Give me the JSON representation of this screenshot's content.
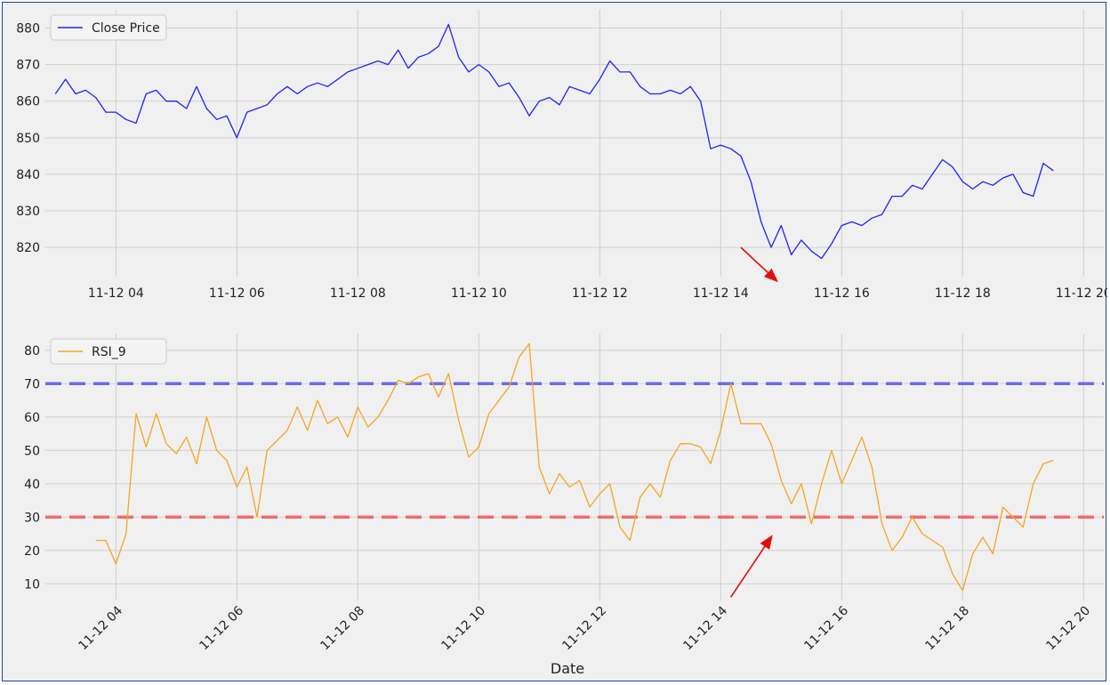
{
  "chart_data": [
    {
      "type": "line",
      "title": "",
      "xlabel": "",
      "ylabel": "",
      "xlim": [
        "2023-11-12 02:50",
        "2023-11-12 20:20"
      ],
      "ylim": [
        812,
        885
      ],
      "x_ticks": [
        "11-12 04",
        "11-12 06",
        "11-12 08",
        "11-12 10",
        "11-12 12",
        "11-12 14",
        "11-12 16",
        "11-12 18",
        "11-12 20"
      ],
      "y_ticks": [
        "820",
        "830",
        "840",
        "850",
        "860",
        "870",
        "880"
      ],
      "legend": {
        "position": "top-left"
      },
      "grid": true,
      "series": [
        {
          "name": "Close Price",
          "color": "#2222ee",
          "x": [
            "2023-11-12 03:00",
            "2023-11-12 03:10",
            "2023-11-12 03:20",
            "2023-11-12 03:30",
            "2023-11-12 03:40",
            "2023-11-12 03:50",
            "2023-11-12 04:00",
            "2023-11-12 04:10",
            "2023-11-12 04:20",
            "2023-11-12 04:30",
            "2023-11-12 04:40",
            "2023-11-12 04:50",
            "2023-11-12 05:00",
            "2023-11-12 05:10",
            "2023-11-12 05:20",
            "2023-11-12 05:30",
            "2023-11-12 05:40",
            "2023-11-12 05:50",
            "2023-11-12 06:00",
            "2023-11-12 06:10",
            "2023-11-12 06:20",
            "2023-11-12 06:30",
            "2023-11-12 06:40",
            "2023-11-12 06:50",
            "2023-11-12 07:00",
            "2023-11-12 07:10",
            "2023-11-12 07:20",
            "2023-11-12 07:30",
            "2023-11-12 07:40",
            "2023-11-12 07:50",
            "2023-11-12 08:00",
            "2023-11-12 08:10",
            "2023-11-12 08:20",
            "2023-11-12 08:30",
            "2023-11-12 08:40",
            "2023-11-12 08:50",
            "2023-11-12 09:00",
            "2023-11-12 09:10",
            "2023-11-12 09:20",
            "2023-11-12 09:30",
            "2023-11-12 09:40",
            "2023-11-12 09:50",
            "2023-11-12 10:00",
            "2023-11-12 10:10",
            "2023-11-12 10:20",
            "2023-11-12 10:30",
            "2023-11-12 10:40",
            "2023-11-12 10:50",
            "2023-11-12 11:00",
            "2023-11-12 11:10",
            "2023-11-12 11:20",
            "2023-11-12 11:30",
            "2023-11-12 11:40",
            "2023-11-12 11:50",
            "2023-11-12 12:00",
            "2023-11-12 12:10",
            "2023-11-12 12:20",
            "2023-11-12 12:30",
            "2023-11-12 12:40",
            "2023-11-12 12:50",
            "2023-11-12 13:00",
            "2023-11-12 13:10",
            "2023-11-12 13:20",
            "2023-11-12 13:30",
            "2023-11-12 13:40",
            "2023-11-12 13:50",
            "2023-11-12 14:00",
            "2023-11-12 14:10",
            "2023-11-12 14:20",
            "2023-11-12 14:30",
            "2023-11-12 14:40",
            "2023-11-12 14:50",
            "2023-11-12 15:00",
            "2023-11-12 15:10",
            "2023-11-12 15:20",
            "2023-11-12 15:30",
            "2023-11-12 15:40",
            "2023-11-12 15:50",
            "2023-11-12 16:00",
            "2023-11-12 16:10",
            "2023-11-12 16:20",
            "2023-11-12 16:30",
            "2023-11-12 16:40",
            "2023-11-12 16:50",
            "2023-11-12 17:00",
            "2023-11-12 17:10",
            "2023-11-12 17:20",
            "2023-11-12 17:30",
            "2023-11-12 17:40",
            "2023-11-12 17:50",
            "2023-11-12 18:00",
            "2023-11-12 18:10",
            "2023-11-12 18:20",
            "2023-11-12 18:30",
            "2023-11-12 18:40",
            "2023-11-12 18:50",
            "2023-11-12 19:00",
            "2023-11-12 19:10",
            "2023-11-12 19:20",
            "2023-11-12 19:30"
          ],
          "y": [
            862,
            866,
            862,
            863,
            861,
            857,
            857,
            855,
            854,
            862,
            863,
            860,
            860,
            858,
            864,
            858,
            855,
            856,
            850,
            857,
            858,
            859,
            862,
            864,
            862,
            864,
            865,
            864,
            866,
            868,
            869,
            870,
            871,
            870,
            874,
            869,
            872,
            873,
            875,
            881,
            872,
            868,
            870,
            868,
            864,
            865,
            861,
            856,
            860,
            861,
            859,
            864,
            863,
            862,
            866,
            871,
            868,
            868,
            864,
            862,
            862,
            863,
            862,
            864,
            860,
            847,
            848,
            847,
            845,
            838,
            827,
            820,
            826,
            818,
            822,
            819,
            817,
            821,
            826,
            827,
            826,
            828,
            829,
            834,
            834,
            837,
            836,
            840,
            844,
            842,
            838,
            836,
            838,
            837,
            839,
            840,
            835,
            834,
            843,
            841
          ],
          "approximate": true
        }
      ]
    },
    {
      "type": "line",
      "title": "",
      "xlabel": "Date",
      "ylabel": "",
      "xlim": [
        "2023-11-12 02:50",
        "2023-11-12 20:20"
      ],
      "ylim": [
        5,
        85
      ],
      "x_ticks": [
        "11-12 04",
        "11-12 06",
        "11-12 08",
        "11-12 10",
        "11-12 12",
        "11-12 14",
        "11-12 16",
        "11-12 18",
        "11-12 20"
      ],
      "y_ticks": [
        "10",
        "20",
        "30",
        "40",
        "50",
        "60",
        "70",
        "80"
      ],
      "legend": {
        "position": "top-left"
      },
      "grid": true,
      "series": [
        {
          "name": "RSI_9",
          "color": "#f5a623",
          "x": [
            "2023-11-12 03:40",
            "2023-11-12 03:50",
            "2023-11-12 04:00",
            "2023-11-12 04:10",
            "2023-11-12 04:20",
            "2023-11-12 04:30",
            "2023-11-12 04:40",
            "2023-11-12 04:50",
            "2023-11-12 05:00",
            "2023-11-12 05:10",
            "2023-11-12 05:20",
            "2023-11-12 05:30",
            "2023-11-12 05:40",
            "2023-11-12 05:50",
            "2023-11-12 06:00",
            "2023-11-12 06:10",
            "2023-11-12 06:20",
            "2023-11-12 06:30",
            "2023-11-12 06:40",
            "2023-11-12 06:50",
            "2023-11-12 07:00",
            "2023-11-12 07:10",
            "2023-11-12 07:20",
            "2023-11-12 07:30",
            "2023-11-12 07:40",
            "2023-11-12 07:50",
            "2023-11-12 08:00",
            "2023-11-12 08:10",
            "2023-11-12 08:20",
            "2023-11-12 08:30",
            "2023-11-12 08:40",
            "2023-11-12 08:50",
            "2023-11-12 09:00",
            "2023-11-12 09:10",
            "2023-11-12 09:20",
            "2023-11-12 09:30",
            "2023-11-12 09:40",
            "2023-11-12 09:50",
            "2023-11-12 10:00",
            "2023-11-12 10:10",
            "2023-11-12 10:20",
            "2023-11-12 10:30",
            "2023-11-12 10:40",
            "2023-11-12 10:50",
            "2023-11-12 11:00",
            "2023-11-12 11:10",
            "2023-11-12 11:20",
            "2023-11-12 11:30",
            "2023-11-12 11:40",
            "2023-11-12 11:50",
            "2023-11-12 12:00",
            "2023-11-12 12:10",
            "2023-11-12 12:20",
            "2023-11-12 12:30",
            "2023-11-12 12:40",
            "2023-11-12 12:50",
            "2023-11-12 13:00",
            "2023-11-12 13:10",
            "2023-11-12 13:20",
            "2023-11-12 13:30",
            "2023-11-12 13:40",
            "2023-11-12 13:50",
            "2023-11-12 14:00",
            "2023-11-12 14:10",
            "2023-11-12 14:20",
            "2023-11-12 14:30",
            "2023-11-12 14:40",
            "2023-11-12 14:50",
            "2023-11-12 15:00",
            "2023-11-12 15:10",
            "2023-11-12 15:20",
            "2023-11-12 15:30",
            "2023-11-12 15:40",
            "2023-11-12 15:50",
            "2023-11-12 16:00",
            "2023-11-12 16:10",
            "2023-11-12 16:20",
            "2023-11-12 16:30",
            "2023-11-12 16:40",
            "2023-11-12 16:50",
            "2023-11-12 17:00",
            "2023-11-12 17:10",
            "2023-11-12 17:20",
            "2023-11-12 17:30",
            "2023-11-12 17:40",
            "2023-11-12 17:50",
            "2023-11-12 18:00",
            "2023-11-12 18:10",
            "2023-11-12 18:20",
            "2023-11-12 18:30",
            "2023-11-12 18:40",
            "2023-11-12 18:50",
            "2023-11-12 19:00",
            "2023-11-12 19:10",
            "2023-11-12 19:20",
            "2023-11-12 19:30"
          ],
          "y": [
            23,
            23,
            16,
            25,
            61,
            51,
            61,
            52,
            49,
            54,
            46,
            60,
            50,
            47,
            39,
            45,
            30,
            50,
            53,
            56,
            63,
            56,
            65,
            58,
            60,
            54,
            63,
            57,
            60,
            65,
            71,
            70,
            72,
            73,
            66,
            73,
            59,
            48,
            51,
            61,
            65,
            69,
            78,
            82,
            45,
            37,
            43,
            39,
            41,
            33,
            37,
            40,
            27,
            23,
            36,
            40,
            36,
            47,
            52,
            52,
            51,
            46,
            56,
            70,
            58,
            58,
            58,
            52,
            41,
            34,
            40,
            28,
            40,
            50,
            40,
            47,
            54,
            45,
            28,
            20,
            24,
            30,
            25,
            23,
            21,
            13,
            8,
            19,
            24,
            19,
            33,
            30,
            27,
            40,
            46,
            47
          ],
          "approximate": true
        }
      ],
      "reference_lines": [
        {
          "y": 70,
          "color": "#6666ee",
          "style": "dashed"
        },
        {
          "y": 30,
          "color": "#ee6666",
          "style": "dashed"
        }
      ]
    }
  ],
  "annotations": {
    "arrow_color": "#e01010",
    "arrows": [
      {
        "panel": "price",
        "from": [
          "2023-11-12 14:20",
          820
        ],
        "to": [
          "2023-11-12 14:55",
          811
        ]
      },
      {
        "panel": "rsi",
        "from": [
          "2023-11-12 14:10",
          6
        ],
        "to": [
          "2023-11-12 14:50",
          24
        ]
      }
    ]
  }
}
